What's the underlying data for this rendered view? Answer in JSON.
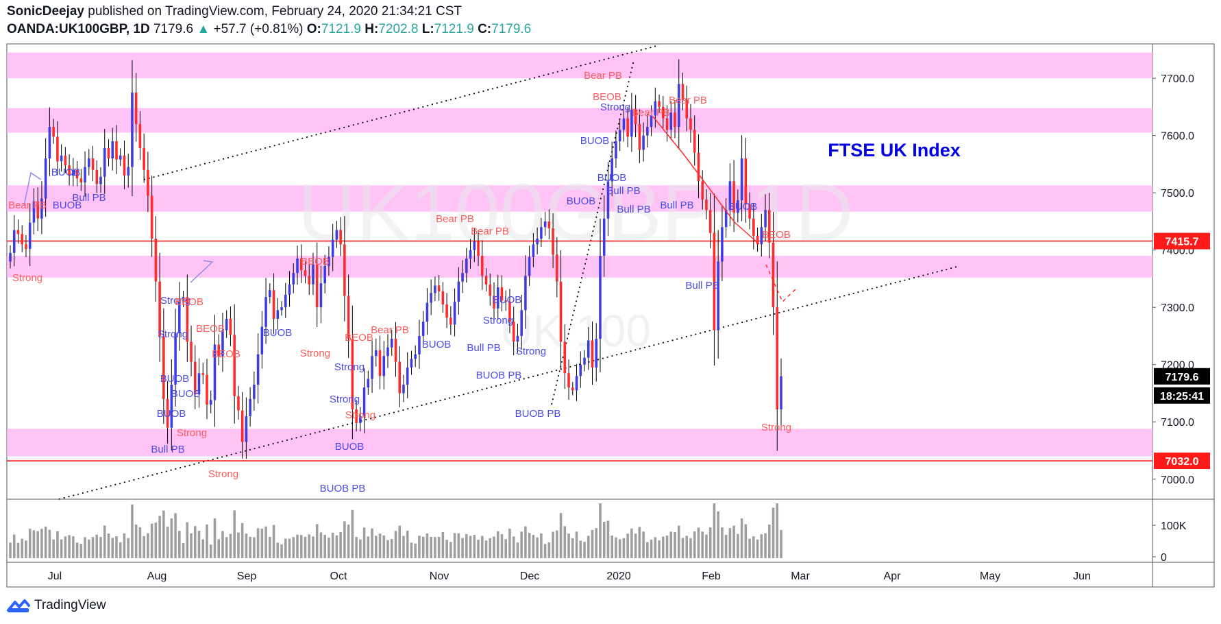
{
  "header": {
    "publisher": "SonicDeejay",
    "published_text": "published on TradingView.com, February 24, 2020 21:34:21 CST",
    "symbol": "OANDA:UK100GBP, 1D",
    "last": "7179.6",
    "change": "+57.7 (+0.81%)",
    "o_label": "O:",
    "o_value": "7121.9",
    "h_label": "H:",
    "h_value": "7202.8",
    "l_label": "L:",
    "l_value": "7121.9",
    "c_label": "C:",
    "c_value": "7179.6"
  },
  "footer": {
    "brand": "TradingView"
  },
  "colors": {
    "up": "#3c3ce6",
    "down": "#ff2a2a",
    "zone": "#ffb8f5",
    "bull_text": "#4a4ae6",
    "bear_text": "#ff5a5a",
    "annotation": "#0000e6",
    "volume": "#9e9e9e"
  },
  "chart_data": {
    "type": "candlestick",
    "watermark": "UK100GBP, 1D",
    "watermark_sub": "UK 100",
    "annotation": "FTSE UK Index",
    "ylim": [
      6965,
      7760
    ],
    "y_ticks": [
      "7700.0",
      "7600.0",
      "7500.0",
      "7400.0",
      "7300.0",
      "7200.0",
      "7100.0",
      "7000.0"
    ],
    "x_labels": [
      "Jul",
      "Aug",
      "Sep",
      "Oct",
      "Nov",
      "Dec",
      "2020",
      "Feb",
      "Mar",
      "Apr",
      "May",
      "Jun"
    ],
    "volume_ticks": [
      "100K",
      "0"
    ],
    "price_lines": [
      {
        "value": 7415.7,
        "label": "7415.7"
      },
      {
        "value": 7032.0,
        "label": "7032.0"
      }
    ],
    "last_price": {
      "value": 7179.6,
      "label": "7179.6",
      "countdown": "18:25:41"
    },
    "zones": [
      [
        7700,
        7745
      ],
      [
        7605,
        7648
      ],
      [
        7467,
        7513
      ],
      [
        7352,
        7390
      ],
      [
        7040,
        7088
      ]
    ],
    "candles_close": [
      7395,
      7435,
      7428,
      7410,
      7402,
      7448,
      7485,
      7455,
      7490,
      7560,
      7615,
      7598,
      7555,
      7565,
      7548,
      7530,
      7540,
      7525,
      7518,
      7545,
      7560,
      7540,
      7515,
      7528,
      7578,
      7560,
      7590,
      7558,
      7565,
      7530,
      7545,
      7675,
      7620,
      7578,
      7540,
      7495,
      7420,
      7345,
      7250,
      7140,
      7090,
      7165,
      7255,
      7310,
      7318,
      7240,
      7205,
      7148,
      7185,
      7182,
      7130,
      7138,
      7235,
      7215,
      7260,
      7280,
      7252,
      7145,
      7120,
      7065,
      7110,
      7140,
      7165,
      7218,
      7266,
      7318,
      7330,
      7280,
      7295,
      7300,
      7322,
      7340,
      7360,
      7385,
      7365,
      7355,
      7340,
      7375,
      7300,
      7342,
      7372,
      7388,
      7418,
      7435,
      7410,
      7320,
      7245,
      7122,
      7098,
      7110,
      7160,
      7175,
      7215,
      7225,
      7180,
      7215,
      7230,
      7245,
      7205,
      7150,
      7165,
      7195,
      7210,
      7218,
      7250,
      7275,
      7308,
      7325,
      7338,
      7328,
      7305,
      7282,
      7270,
      7310,
      7345,
      7360,
      7385,
      7400,
      7415,
      7390,
      7355,
      7340,
      7320,
      7298,
      7335,
      7312,
      7310,
      7275,
      7240,
      7250,
      7295,
      7355,
      7388,
      7410,
      7420,
      7440,
      7450,
      7438,
      7392,
      7345,
      7240,
      7185,
      7160,
      7155,
      7180,
      7200,
      7212,
      7242,
      7195,
      7245,
      7390,
      7455,
      7520,
      7560,
      7590,
      7610,
      7630,
      7598,
      7645,
      7620,
      7575,
      7600,
      7615,
      7635,
      7660,
      7650,
      7630,
      7610,
      7640,
      7615,
      7690,
      7662,
      7630,
      7610,
      7570,
      7520,
      7488,
      7470,
      7430,
      7260,
      7380,
      7440,
      7470,
      7520,
      7465,
      7487,
      7560,
      7480,
      7455,
      7425,
      7410,
      7440,
      7470,
      7413,
      7300,
      7121.9,
      7179.6
    ]
  }
}
